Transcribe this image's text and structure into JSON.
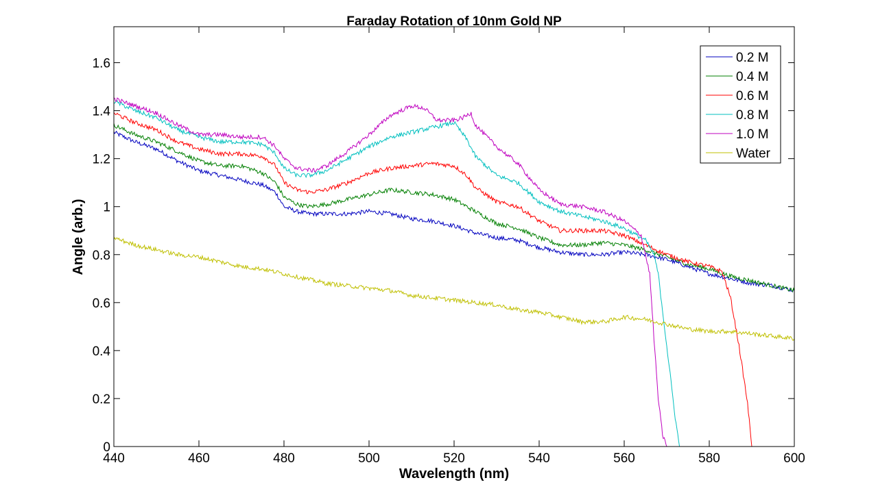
{
  "chart_data": {
    "type": "line",
    "title": "Faraday Rotation of 10nm Gold NP",
    "xlabel": "Wavelength (nm)",
    "ylabel": "Angle (arb.)",
    "xlim": [
      440,
      600
    ],
    "ylim": [
      0,
      1.75
    ],
    "xticks": [
      440,
      460,
      480,
      500,
      520,
      540,
      560,
      580,
      600
    ],
    "yticks": [
      0,
      0.2,
      0.4,
      0.6,
      0.8,
      1,
      1.2,
      1.4,
      1.6
    ],
    "xtick_labels": [
      "440",
      "460",
      "480",
      "500",
      "520",
      "540",
      "560",
      "580",
      "600"
    ],
    "ytick_labels": [
      "0",
      "0.2",
      "0.4",
      "0.6",
      "0.8",
      "1",
      "1.2",
      "1.4",
      "1.6"
    ],
    "grid": false,
    "legend_position": "top-right",
    "series": [
      {
        "name": "0.2 M",
        "color": "#0000bf",
        "x": [
          440,
          445,
          450,
          455,
          460,
          465,
          470,
          475,
          478,
          480,
          483,
          486,
          490,
          495,
          500,
          505,
          510,
          515,
          520,
          525,
          530,
          535,
          540,
          545,
          550,
          555,
          560,
          565,
          570,
          575,
          580,
          585,
          590,
          595,
          600
        ],
        "y": [
          1.31,
          1.27,
          1.24,
          1.19,
          1.15,
          1.13,
          1.11,
          1.09,
          1.06,
          1.0,
          0.98,
          0.97,
          0.97,
          0.97,
          0.98,
          0.97,
          0.95,
          0.94,
          0.92,
          0.89,
          0.87,
          0.86,
          0.83,
          0.81,
          0.8,
          0.8,
          0.81,
          0.8,
          0.78,
          0.75,
          0.72,
          0.7,
          0.68,
          0.67,
          0.65
        ]
      },
      {
        "name": "0.4 M",
        "color": "#007f00",
        "x": [
          440,
          445,
          450,
          455,
          460,
          465,
          470,
          475,
          478,
          480,
          483,
          486,
          490,
          495,
          500,
          505,
          510,
          515,
          520,
          525,
          530,
          535,
          540,
          545,
          550,
          555,
          560,
          565,
          570,
          575,
          580,
          585,
          590,
          595,
          600
        ],
        "y": [
          1.34,
          1.3,
          1.27,
          1.23,
          1.19,
          1.17,
          1.17,
          1.14,
          1.1,
          1.04,
          1.01,
          1.0,
          1.01,
          1.03,
          1.05,
          1.07,
          1.06,
          1.05,
          1.03,
          0.98,
          0.93,
          0.91,
          0.87,
          0.84,
          0.84,
          0.85,
          0.84,
          0.82,
          0.79,
          0.76,
          0.74,
          0.71,
          0.69,
          0.67,
          0.65
        ]
      },
      {
        "name": "0.6 M",
        "color": "#ff0000",
        "x": [
          440,
          445,
          450,
          455,
          460,
          465,
          470,
          475,
          478,
          480,
          483,
          486,
          490,
          495,
          500,
          505,
          510,
          515,
          520,
          523,
          525,
          530,
          535,
          540,
          545,
          550,
          555,
          560,
          565,
          570,
          575,
          580,
          583,
          585,
          587,
          589,
          590,
          592,
          600
        ],
        "y": [
          1.39,
          1.35,
          1.32,
          1.27,
          1.24,
          1.22,
          1.22,
          1.21,
          1.17,
          1.1,
          1.07,
          1.06,
          1.07,
          1.1,
          1.14,
          1.16,
          1.17,
          1.18,
          1.17,
          1.13,
          1.08,
          1.02,
          1.0,
          0.94,
          0.9,
          0.9,
          0.9,
          0.88,
          0.84,
          0.8,
          0.77,
          0.75,
          0.73,
          0.62,
          0.42,
          0.18,
          0.0,
          0.0,
          0.0
        ]
      },
      {
        "name": "0.8 M",
        "color": "#00bfbf",
        "x": [
          440,
          445,
          450,
          455,
          460,
          465,
          470,
          475,
          478,
          480,
          483,
          486,
          490,
          495,
          500,
          505,
          510,
          515,
          520,
          523,
          525,
          530,
          535,
          540,
          545,
          550,
          555,
          560,
          565,
          567,
          568,
          570,
          572,
          573,
          575,
          600
        ],
        "y": [
          1.44,
          1.4,
          1.37,
          1.32,
          1.29,
          1.27,
          1.27,
          1.26,
          1.22,
          1.16,
          1.13,
          1.13,
          1.15,
          1.2,
          1.25,
          1.29,
          1.31,
          1.33,
          1.35,
          1.28,
          1.21,
          1.13,
          1.1,
          1.02,
          0.98,
          0.96,
          0.94,
          0.91,
          0.86,
          0.8,
          0.72,
          0.42,
          0.12,
          0.0,
          0.0,
          0.0
        ]
      },
      {
        "name": "1.0 M",
        "color": "#bf00bf",
        "x": [
          440,
          445,
          450,
          455,
          460,
          465,
          470,
          475,
          478,
          480,
          483,
          487,
          490,
          495,
          500,
          505,
          510,
          513,
          516,
          520,
          522,
          524,
          525,
          530,
          535,
          540,
          545,
          550,
          555,
          560,
          564,
          566,
          567,
          568,
          569,
          570,
          575,
          600
        ],
        "y": [
          1.45,
          1.42,
          1.39,
          1.34,
          1.3,
          1.3,
          1.29,
          1.29,
          1.25,
          1.2,
          1.16,
          1.15,
          1.17,
          1.23,
          1.3,
          1.38,
          1.42,
          1.41,
          1.36,
          1.36,
          1.37,
          1.39,
          1.34,
          1.25,
          1.18,
          1.07,
          1.01,
          1.0,
          0.98,
          0.94,
          0.88,
          0.72,
          0.45,
          0.2,
          0.05,
          0.0,
          0.0,
          0.0
        ]
      },
      {
        "name": "Water",
        "color": "#bfbf00",
        "x": [
          440,
          445,
          450,
          455,
          460,
          465,
          470,
          475,
          480,
          485,
          490,
          495,
          500,
          505,
          510,
          515,
          520,
          525,
          530,
          535,
          540,
          545,
          550,
          555,
          558,
          560,
          565,
          570,
          575,
          580,
          585,
          590,
          595,
          600
        ],
        "y": [
          0.87,
          0.84,
          0.82,
          0.8,
          0.79,
          0.77,
          0.75,
          0.74,
          0.72,
          0.7,
          0.68,
          0.67,
          0.66,
          0.65,
          0.63,
          0.62,
          0.61,
          0.6,
          0.59,
          0.57,
          0.56,
          0.54,
          0.52,
          0.52,
          0.53,
          0.54,
          0.53,
          0.51,
          0.49,
          0.48,
          0.48,
          0.47,
          0.46,
          0.45
        ]
      }
    ]
  }
}
